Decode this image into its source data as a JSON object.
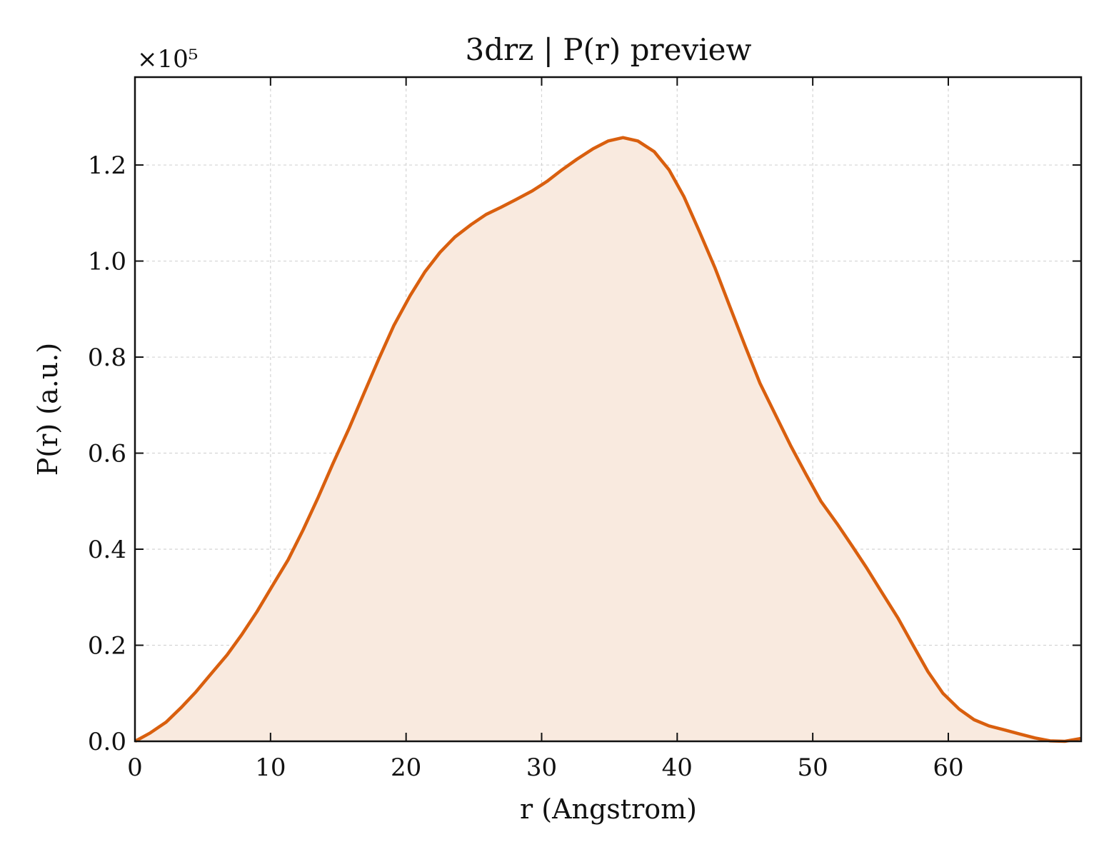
{
  "chart_data": {
    "type": "area",
    "title": "3drz | P(r) preview",
    "xlabel": "r (Angstrom)",
    "ylabel": "P(r) (a.u.)",
    "y_multiplier": "×10⁵",
    "xlim": [
      0,
      69.8
    ],
    "ylim": [
      0,
      1.383
    ],
    "xticks": [
      0,
      10,
      20,
      30,
      40,
      50,
      60
    ],
    "yticks": [
      0.0,
      0.2,
      0.4,
      0.6,
      0.8,
      1.0,
      1.2
    ],
    "xtick_labels": [
      "0",
      "10",
      "20",
      "30",
      "40",
      "50",
      "60"
    ],
    "ytick_labels": [
      "0.0",
      "0.2",
      "0.4",
      "0.6",
      "0.8",
      "1.0",
      "1.2"
    ],
    "grid": true,
    "line_color": "#d95f0e",
    "fill_color": "#f9eadf",
    "series": [
      {
        "x": [
          0,
          1.1,
          2.3,
          3.4,
          4.5,
          5.6,
          6.8,
          7.9,
          9.0,
          10.1,
          11.3,
          12.4,
          13.5,
          14.6,
          15.8,
          16.9,
          18.0,
          19.1,
          20.3,
          21.4,
          22.5,
          23.6,
          24.8,
          25.9,
          27.0,
          28.1,
          29.3,
          30.4,
          31.5,
          32.6,
          33.8,
          34.9,
          36.0,
          37.1,
          38.3,
          39.4,
          40.5,
          41.6,
          42.8,
          43.9,
          45.0,
          46.1,
          47.3,
          48.4,
          49.5,
          50.6,
          51.8,
          52.9,
          54.0,
          55.1,
          56.3,
          57.4,
          58.5,
          59.6,
          60.8,
          61.9,
          63.0,
          64.1,
          65.3,
          66.4,
          67.5,
          68.6,
          69.8
        ],
        "y": [
          0.0,
          0.017,
          0.04,
          0.07,
          0.103,
          0.14,
          0.18,
          0.223,
          0.27,
          0.322,
          0.378,
          0.44,
          0.507,
          0.578,
          0.652,
          0.725,
          0.797,
          0.866,
          0.928,
          0.978,
          1.018,
          1.05,
          1.076,
          1.097,
          1.112,
          1.128,
          1.146,
          1.166,
          1.19,
          1.212,
          1.234,
          1.25,
          1.257,
          1.25,
          1.228,
          1.19,
          1.134,
          1.064,
          0.985,
          0.904,
          0.824,
          0.746,
          0.677,
          0.614,
          0.556,
          0.5,
          0.453,
          0.407,
          0.36,
          0.31,
          0.256,
          0.2,
          0.145,
          0.1,
          0.067,
          0.045,
          0.032,
          0.024,
          0.015,
          0.007,
          0.001,
          0.0,
          0.006
        ]
      }
    ]
  }
}
